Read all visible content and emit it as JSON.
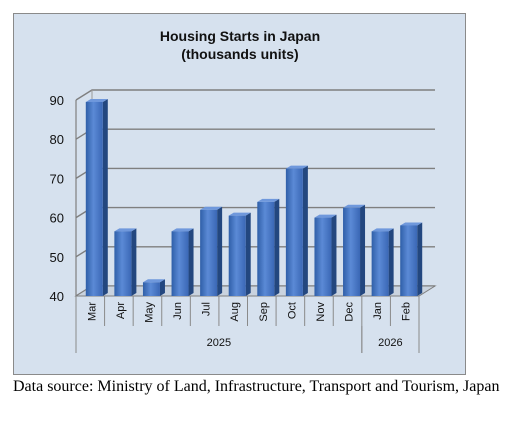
{
  "chart_data": {
    "type": "bar",
    "title": "Housing Starts in Japan",
    "subtitle": "(thousands units)",
    "categories": [
      "Mar",
      "Apr",
      "May",
      "Jun",
      "Jul",
      "Aug",
      "Sep",
      "Oct",
      "Nov",
      "Dec",
      "Jan",
      "Feb"
    ],
    "values": [
      89.5,
      56.5,
      43.5,
      56.5,
      62,
      60.5,
      64,
      72.5,
      60,
      62.5,
      56.5,
      58
    ],
    "groups": [
      {
        "label": "2025",
        "count": 10
      },
      {
        "label": "2026",
        "count": 2
      }
    ],
    "ylim": [
      40,
      90
    ],
    "yticks": [
      "40",
      "50",
      "60",
      "70",
      "80",
      "90"
    ],
    "grid": true,
    "bar_color": "#4472c4"
  },
  "source_note": "Data source: Ministry of Land, Infrastructure, Transport and Tourism, Japan"
}
